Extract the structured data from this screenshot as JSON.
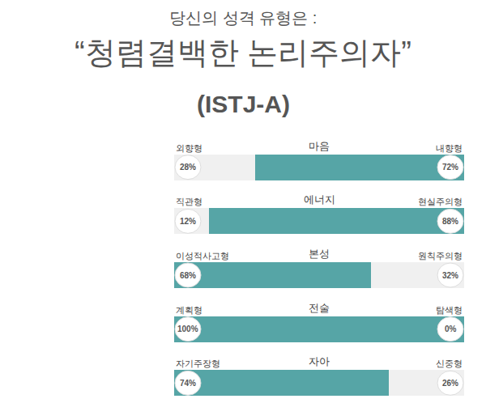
{
  "chart_data": {
    "type": "bar",
    "orientation": "horizontal",
    "stacked": true,
    "annotations": [
      "당신의 성격 유형은 :"
    ],
    "title": "“청렴결백한 논리주의자”",
    "subtitle": "(ISTJ-A)",
    "categories": [
      "마음",
      "에너지",
      "본성",
      "전술",
      "자아"
    ],
    "series": [
      {
        "labels": [
          "외향형",
          "직관형",
          "이성적사고형",
          "계획형",
          "자기주장형"
        ],
        "values": [
          28,
          12,
          68,
          100,
          74
        ],
        "value_labels": [
          "28%",
          "12%",
          "68%",
          "100%",
          "74%"
        ],
        "colors": [
          "#f0f0f0",
          "#f0f0f0",
          "#56a5a6",
          "#56a5a6",
          "#56a5a6"
        ]
      },
      {
        "labels": [
          "내향형",
          "현실주의형",
          "원칙주의형",
          "탐색형",
          "신중형"
        ],
        "values": [
          72,
          88,
          32,
          0,
          26
        ],
        "value_labels": [
          "72%",
          "88%",
          "32%",
          "0%",
          "26%"
        ],
        "colors": [
          "#56a5a6",
          "#56a5a6",
          "#f0f0f0",
          "#f0f0f0",
          "#f0f0f0"
        ]
      }
    ],
    "xlim": [
      0,
      100
    ],
    "data_labels": true,
    "tick_labels": false,
    "grid": false
  }
}
